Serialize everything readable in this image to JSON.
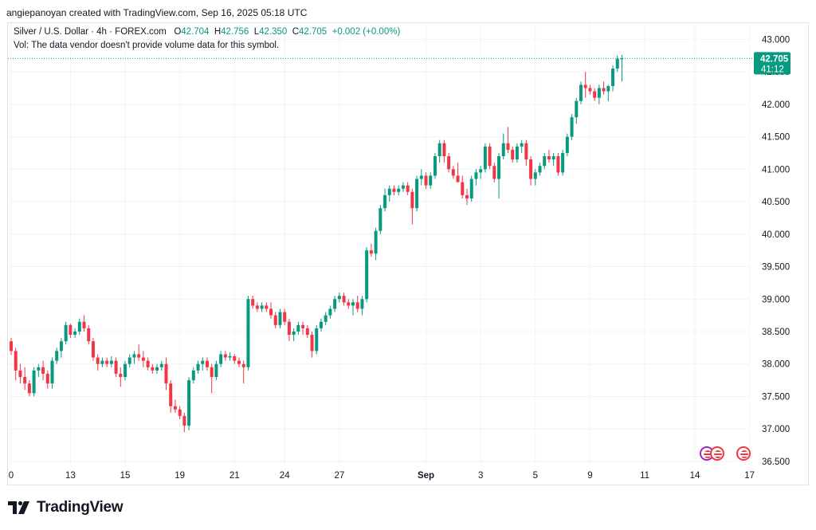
{
  "header": {
    "text": "angiepanoyan created with TradingView.com, Sep 16, 2025 05:18 UTC"
  },
  "legend": {
    "symbol": "Silver / U.S. Dollar · 4h · FOREX.com",
    "o_label": "O",
    "o_value": "42.704",
    "h_label": "H",
    "h_value": "42.756",
    "l_label": "L",
    "l_value": "42.350",
    "c_label": "C",
    "c_value": "42.705",
    "change": "+0.002 (+0.00%)",
    "vol_note": "Vol: The data vendor doesn't provide volume data for this symbol."
  },
  "price_tag": {
    "price": "42.705",
    "countdown": "41:12"
  },
  "footer": {
    "brand": "TradingView"
  },
  "colors": {
    "up": "#089981",
    "down": "#f23645",
    "grid": "#f0f3fa",
    "text": "#131722",
    "price_line": "#089981"
  },
  "events": [
    {
      "name": "flag-icon",
      "label": "US"
    },
    {
      "name": "flag-icon",
      "label": "US"
    }
  ],
  "chart_data": {
    "type": "candlestick",
    "title": "Silver / U.S. Dollar · 4h · FOREX.com",
    "ylim": [
      36.45,
      43.25
    ],
    "y_ticks": [
      "43.000",
      "42.500",
      "42.000",
      "41.500",
      "41.000",
      "40.500",
      "40.000",
      "39.500",
      "39.000",
      "38.500",
      "38.000",
      "37.500",
      "37.000",
      "36.500"
    ],
    "x_ticks": [
      {
        "label": "0",
        "idx": 0
      },
      {
        "label": "13",
        "idx": 13
      },
      {
        "label": "15",
        "idx": 25
      },
      {
        "label": "19",
        "idx": 37
      },
      {
        "label": "21",
        "idx": 49
      },
      {
        "label": "24",
        "idx": 60
      },
      {
        "label": "27",
        "idx": 72
      },
      {
        "label": "Sep",
        "idx": 91
      },
      {
        "label": "3",
        "idx": 103
      },
      {
        "label": "5",
        "idx": 115
      },
      {
        "label": "9",
        "idx": 127
      },
      {
        "label": "11",
        "idx": 139
      },
      {
        "label": "14",
        "idx": 150
      },
      {
        "label": "17",
        "idx": 162
      }
    ],
    "last_price": 42.705,
    "candles": [
      [
        38.35,
        38.4,
        38.14,
        38.2
      ],
      [
        38.2,
        38.25,
        37.75,
        37.9
      ],
      [
        37.9,
        38.0,
        37.7,
        37.8
      ],
      [
        37.8,
        37.95,
        37.6,
        37.7
      ],
      [
        37.7,
        37.75,
        37.5,
        37.55
      ],
      [
        37.55,
        37.95,
        37.5,
        37.9
      ],
      [
        37.9,
        38.0,
        37.8,
        37.95
      ],
      [
        37.95,
        38.05,
        37.75,
        37.85
      ],
      [
        37.85,
        37.9,
        37.62,
        37.7
      ],
      [
        37.7,
        38.1,
        37.62,
        38.05
      ],
      [
        38.05,
        38.25,
        38.0,
        38.2
      ],
      [
        38.2,
        38.4,
        38.1,
        38.35
      ],
      [
        38.35,
        38.65,
        38.3,
        38.6
      ],
      [
        38.6,
        38.62,
        38.4,
        38.45
      ],
      [
        38.45,
        38.55,
        38.4,
        38.5
      ],
      [
        38.5,
        38.7,
        38.45,
        38.65
      ],
      [
        38.65,
        38.75,
        38.5,
        38.55
      ],
      [
        38.55,
        38.6,
        38.3,
        38.35
      ],
      [
        38.35,
        38.4,
        38.05,
        38.1
      ],
      [
        38.1,
        38.15,
        37.9,
        38.0
      ],
      [
        38.0,
        38.1,
        37.95,
        38.05
      ],
      [
        38.05,
        38.1,
        37.95,
        38.0
      ],
      [
        38.0,
        38.12,
        37.95,
        38.05
      ],
      [
        38.05,
        38.1,
        37.8,
        37.85
      ],
      [
        37.85,
        37.95,
        37.65,
        37.8
      ],
      [
        37.8,
        38.05,
        37.75,
        38.0
      ],
      [
        38.0,
        38.15,
        37.95,
        38.1
      ],
      [
        38.1,
        38.2,
        38.0,
        38.15
      ],
      [
        38.15,
        38.3,
        38.05,
        38.1
      ],
      [
        38.1,
        38.2,
        37.95,
        38.05
      ],
      [
        38.05,
        38.1,
        37.9,
        37.95
      ],
      [
        37.95,
        38.0,
        37.85,
        37.9
      ],
      [
        37.9,
        38.0,
        37.85,
        37.95
      ],
      [
        37.95,
        38.05,
        37.9,
        38.0
      ],
      [
        38.0,
        38.1,
        37.6,
        37.7
      ],
      [
        37.7,
        37.75,
        37.25,
        37.35
      ],
      [
        37.35,
        37.45,
        37.25,
        37.3
      ],
      [
        37.3,
        37.35,
        37.15,
        37.2
      ],
      [
        37.2,
        37.25,
        36.95,
        37.05
      ],
      [
        37.05,
        37.8,
        36.98,
        37.75
      ],
      [
        37.75,
        37.95,
        37.7,
        37.9
      ],
      [
        37.9,
        38.05,
        37.85,
        38.0
      ],
      [
        38.0,
        38.1,
        37.9,
        38.05
      ],
      [
        38.05,
        38.1,
        37.9,
        37.95
      ],
      [
        37.95,
        38.0,
        37.55,
        37.8
      ],
      [
        37.8,
        38.05,
        37.75,
        38.0
      ],
      [
        38.0,
        38.2,
        37.95,
        38.15
      ],
      [
        38.15,
        38.2,
        38.05,
        38.1
      ],
      [
        38.1,
        38.18,
        38.05,
        38.12
      ],
      [
        38.12,
        38.15,
        38.0,
        38.05
      ],
      [
        38.05,
        38.1,
        37.95,
        38.0
      ],
      [
        38.0,
        38.05,
        37.7,
        37.95
      ],
      [
        37.95,
        39.05,
        37.9,
        39.0
      ],
      [
        39.0,
        39.05,
        38.85,
        38.9
      ],
      [
        38.9,
        38.95,
        38.8,
        38.85
      ],
      [
        38.85,
        38.95,
        38.8,
        38.9
      ],
      [
        38.9,
        38.95,
        38.8,
        38.85
      ],
      [
        38.85,
        38.95,
        38.7,
        38.75
      ],
      [
        38.75,
        38.8,
        38.55,
        38.6
      ],
      [
        38.6,
        38.85,
        38.55,
        38.8
      ],
      [
        38.8,
        38.85,
        38.6,
        38.65
      ],
      [
        38.65,
        38.7,
        38.35,
        38.45
      ],
      [
        38.45,
        38.55,
        38.35,
        38.5
      ],
      [
        38.5,
        38.65,
        38.45,
        38.6
      ],
      [
        38.6,
        38.65,
        38.45,
        38.55
      ],
      [
        38.55,
        38.6,
        38.4,
        38.45
      ],
      [
        38.45,
        38.5,
        38.1,
        38.2
      ],
      [
        38.2,
        38.6,
        38.15,
        38.55
      ],
      [
        38.55,
        38.7,
        38.5,
        38.65
      ],
      [
        38.65,
        38.8,
        38.6,
        38.75
      ],
      [
        38.75,
        38.9,
        38.7,
        38.85
      ],
      [
        38.85,
        39.05,
        38.8,
        39.0
      ],
      [
        39.0,
        39.1,
        38.95,
        39.05
      ],
      [
        39.05,
        39.1,
        38.9,
        38.95
      ],
      [
        38.95,
        39.0,
        38.85,
        38.9
      ],
      [
        38.9,
        39.0,
        38.75,
        38.95
      ],
      [
        38.95,
        39.05,
        38.8,
        38.85
      ],
      [
        38.85,
        39.05,
        38.75,
        39.0
      ],
      [
        39.0,
        39.8,
        38.95,
        39.75
      ],
      [
        39.75,
        39.85,
        39.65,
        39.7
      ],
      [
        39.7,
        40.1,
        39.6,
        40.05
      ],
      [
        40.05,
        40.45,
        40.0,
        40.4
      ],
      [
        40.4,
        40.7,
        40.35,
        40.6
      ],
      [
        40.6,
        40.75,
        40.5,
        40.7
      ],
      [
        40.7,
        40.75,
        40.6,
        40.65
      ],
      [
        40.65,
        40.75,
        40.6,
        40.7
      ],
      [
        40.7,
        40.8,
        40.65,
        40.75
      ],
      [
        40.75,
        40.8,
        40.6,
        40.65
      ],
      [
        40.65,
        40.7,
        40.15,
        40.4
      ],
      [
        40.4,
        40.9,
        40.35,
        40.85
      ],
      [
        40.85,
        41.0,
        40.75,
        40.9
      ],
      [
        40.9,
        40.95,
        40.7,
        40.75
      ],
      [
        40.75,
        40.95,
        40.7,
        40.9
      ],
      [
        40.9,
        41.25,
        40.85,
        41.2
      ],
      [
        41.2,
        41.45,
        41.1,
        41.4
      ],
      [
        41.4,
        41.45,
        41.1,
        41.2
      ],
      [
        41.2,
        41.25,
        40.95,
        41.0
      ],
      [
        41.0,
        41.05,
        40.85,
        40.9
      ],
      [
        40.9,
        41.1,
        40.8,
        40.8
      ],
      [
        40.8,
        40.9,
        40.55,
        40.6
      ],
      [
        40.6,
        40.7,
        40.45,
        40.55
      ],
      [
        40.55,
        40.9,
        40.5,
        40.85
      ],
      [
        40.85,
        41.0,
        40.75,
        40.95
      ],
      [
        40.95,
        41.05,
        40.85,
        41.0
      ],
      [
        41.0,
        41.4,
        40.95,
        41.35
      ],
      [
        41.35,
        41.4,
        41.0,
        41.05
      ],
      [
        41.05,
        41.1,
        40.8,
        40.85
      ],
      [
        40.85,
        41.25,
        40.55,
        41.2
      ],
      [
        41.2,
        41.55,
        41.15,
        41.4
      ],
      [
        41.4,
        41.65,
        41.25,
        41.3
      ],
      [
        41.3,
        41.35,
        41.1,
        41.15
      ],
      [
        41.15,
        41.4,
        41.1,
        41.35
      ],
      [
        41.35,
        41.45,
        41.25,
        41.4
      ],
      [
        41.4,
        41.45,
        41.05,
        41.15
      ],
      [
        41.15,
        41.2,
        40.75,
        40.85
      ],
      [
        40.85,
        41.0,
        40.75,
        40.95
      ],
      [
        40.95,
        41.1,
        40.9,
        41.05
      ],
      [
        41.05,
        41.25,
        41.0,
        41.2
      ],
      [
        41.2,
        41.3,
        41.1,
        41.15
      ],
      [
        41.15,
        41.25,
        41.05,
        41.2
      ],
      [
        41.2,
        41.25,
        40.9,
        40.95
      ],
      [
        40.95,
        41.3,
        40.9,
        41.25
      ],
      [
        41.25,
        41.55,
        41.2,
        41.5
      ],
      [
        41.5,
        41.85,
        41.45,
        41.8
      ],
      [
        41.8,
        42.1,
        41.7,
        42.05
      ],
      [
        42.05,
        42.35,
        42.0,
        42.3
      ],
      [
        42.3,
        42.5,
        42.1,
        42.25
      ],
      [
        42.25,
        42.3,
        42.15,
        42.2
      ],
      [
        42.2,
        42.25,
        42.05,
        42.1
      ],
      [
        42.1,
        42.3,
        42.0,
        42.25
      ],
      [
        42.25,
        42.35,
        42.15,
        42.2
      ],
      [
        42.2,
        42.3,
        42.05,
        42.28
      ],
      [
        42.28,
        42.6,
        42.2,
        42.55
      ],
      [
        42.55,
        42.75,
        42.5,
        42.7
      ],
      [
        42.7,
        42.76,
        42.35,
        42.705
      ]
    ]
  }
}
